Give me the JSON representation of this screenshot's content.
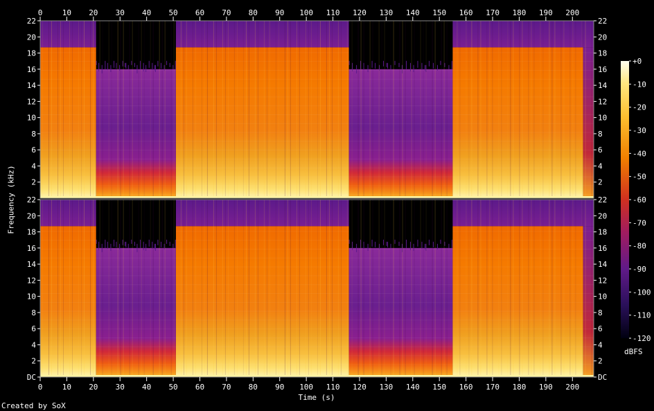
{
  "chart_data": {
    "type": "heatmap",
    "description_channels": 2,
    "xlabel": "Time (s)",
    "ylabel": "Frequency (kHz)",
    "xlim": [
      0,
      208
    ],
    "ylim": [
      0,
      22
    ],
    "x_ticks": [
      "0",
      "10",
      "20",
      "30",
      "40",
      "50",
      "60",
      "70",
      "80",
      "90",
      "100",
      "110",
      "120",
      "130",
      "140",
      "150",
      "160",
      "170",
      "180",
      "190",
      "200"
    ],
    "y_ticks": [
      "DC",
      "2",
      "4",
      "6",
      "8",
      "10",
      "12",
      "14",
      "16",
      "18",
      "20",
      "22"
    ],
    "top_y_ticks": [
      "2",
      "4",
      "6",
      "8",
      "10",
      "12",
      "14",
      "16",
      "18",
      "20",
      "22"
    ],
    "colorbar": {
      "unit": "dBFS",
      "ticks": [
        "+0",
        "-10",
        "-20",
        "-30",
        "-40",
        "-50",
        "-60",
        "-70",
        "-80",
        "-90",
        "-100",
        "-110",
        "-120"
      ],
      "range": [
        -120,
        0
      ]
    },
    "segments": [
      {
        "start": 0,
        "end": 21,
        "cutoff_khz": 18.7,
        "style": "full"
      },
      {
        "start": 21,
        "end": 51,
        "cutoff_khz": 16.0,
        "style": "quiet"
      },
      {
        "start": 51,
        "end": 116,
        "cutoff_khz": 18.7,
        "style": "full"
      },
      {
        "start": 116,
        "end": 155,
        "cutoff_khz": 16.0,
        "style": "quiet"
      },
      {
        "start": 155,
        "end": 204,
        "cutoff_khz": 18.7,
        "style": "full"
      },
      {
        "start": 204,
        "end": 208,
        "cutoff_khz": 18.7,
        "style": "fade"
      }
    ],
    "credit": "Created by SoX"
  }
}
